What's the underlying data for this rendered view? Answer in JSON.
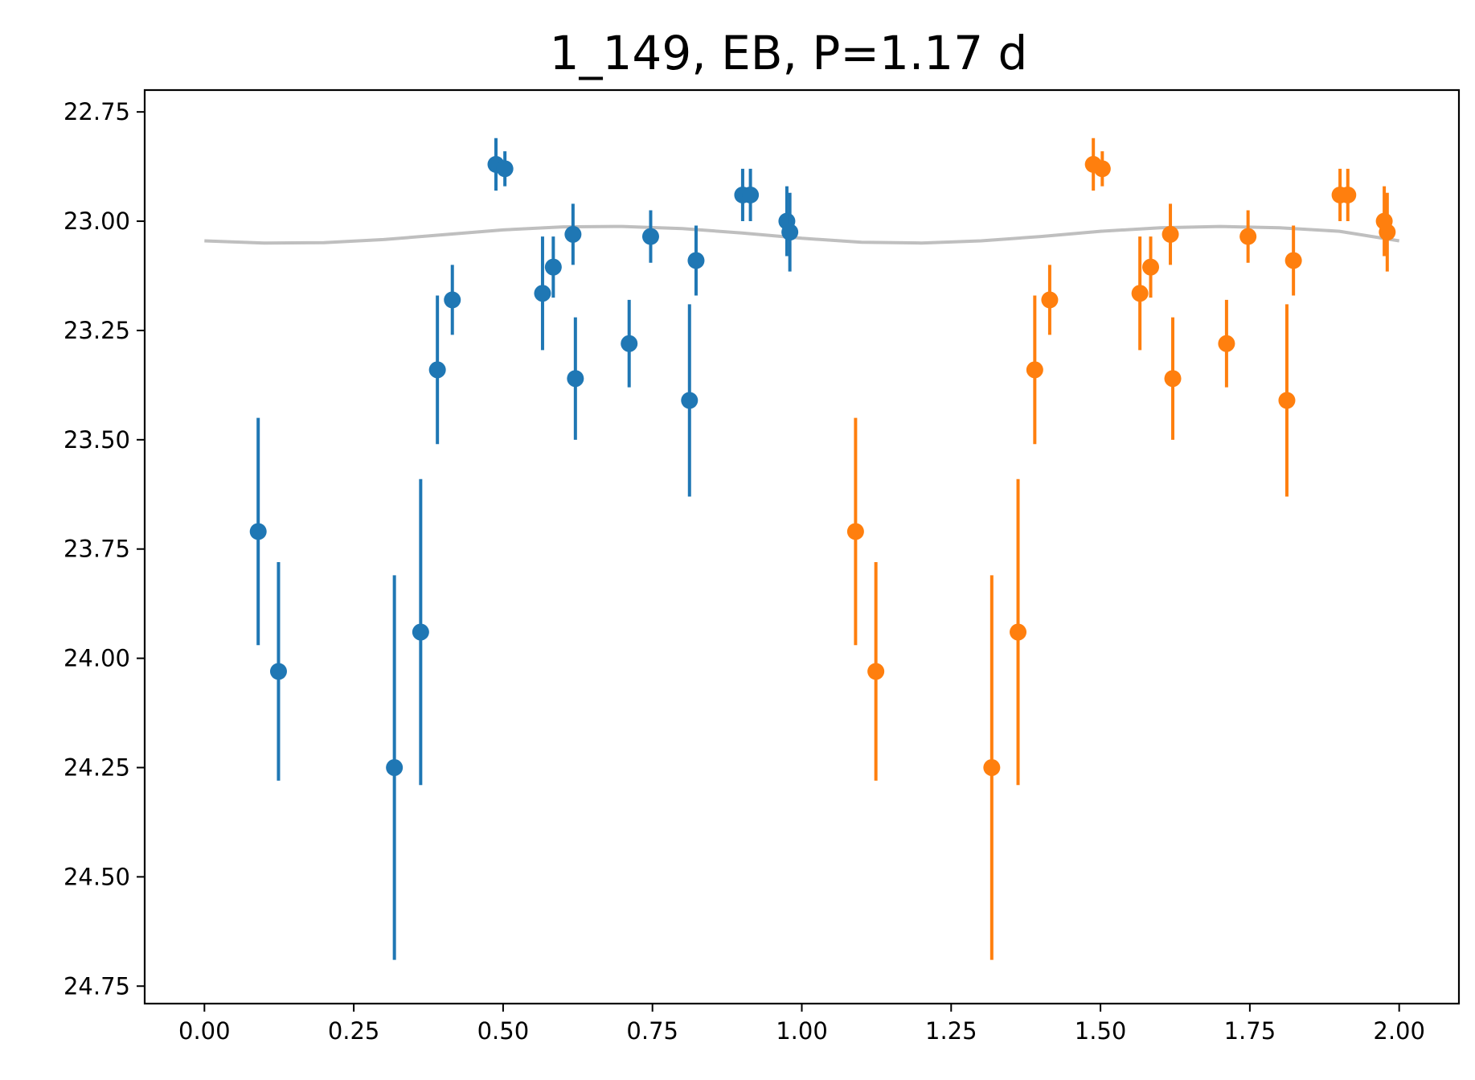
{
  "chart_data": {
    "type": "scatter",
    "title": "1_149, EB, P=1.17 d",
    "xlabel": "",
    "ylabel": "",
    "xlim": [
      -0.1,
      2.1
    ],
    "ylim": [
      24.79,
      22.7
    ],
    "y_inverted": true,
    "grid": false,
    "x_ticks": [
      "0.00",
      "0.25",
      "0.50",
      "0.75",
      "1.00",
      "1.25",
      "1.50",
      "1.75",
      "2.00"
    ],
    "y_ticks": [
      "22.75",
      "23.00",
      "23.25",
      "23.50",
      "23.75",
      "24.00",
      "24.25",
      "24.50",
      "24.75"
    ],
    "colors": {
      "phase0": "#1f77b4",
      "phase1": "#ff7f0e",
      "model": "#bfbfbf"
    },
    "model_curve": {
      "x": [
        0.0,
        0.1,
        0.2,
        0.3,
        0.4,
        0.5,
        0.6,
        0.7,
        0.8,
        0.9,
        1.0,
        1.1,
        1.2,
        1.3,
        1.4,
        1.5,
        1.6,
        1.7,
        1.8,
        1.9,
        2.0
      ],
      "y": [
        23.045,
        23.05,
        23.049,
        23.042,
        23.031,
        23.02,
        23.013,
        23.012,
        23.017,
        23.027,
        23.039,
        23.048,
        23.05,
        23.045,
        23.035,
        23.023,
        23.015,
        23.012,
        23.015,
        23.023,
        23.045
      ]
    },
    "series": [
      {
        "points": [
          {
            "x": 0.09,
            "y": 23.71,
            "err": 0.26
          },
          {
            "x": 0.124,
            "y": 24.03,
            "err": 0.25
          },
          {
            "x": 0.318,
            "y": 24.25,
            "err": 0.44
          },
          {
            "x": 0.362,
            "y": 23.94,
            "err": 0.35
          },
          {
            "x": 0.39,
            "y": 23.34,
            "err": 0.17
          },
          {
            "x": 0.415,
            "y": 23.18,
            "err": 0.08
          },
          {
            "x": 0.488,
            "y": 22.87,
            "err": 0.06
          },
          {
            "x": 0.503,
            "y": 22.88,
            "err": 0.04
          },
          {
            "x": 0.566,
            "y": 23.165,
            "err": 0.13
          },
          {
            "x": 0.584,
            "y": 23.105,
            "err": 0.07
          },
          {
            "x": 0.617,
            "y": 23.03,
            "err": 0.07
          },
          {
            "x": 0.621,
            "y": 23.36,
            "err": 0.14
          },
          {
            "x": 0.711,
            "y": 23.28,
            "err": 0.1
          },
          {
            "x": 0.747,
            "y": 23.035,
            "err": 0.06
          },
          {
            "x": 0.812,
            "y": 23.41,
            "err": 0.22
          },
          {
            "x": 0.823,
            "y": 23.09,
            "err": 0.08
          },
          {
            "x": 0.901,
            "y": 22.94,
            "err": 0.06
          },
          {
            "x": 0.914,
            "y": 22.94,
            "err": 0.06
          },
          {
            "x": 0.975,
            "y": 23.0,
            "err": 0.08
          },
          {
            "x": 0.98,
            "y": 23.025,
            "err": 0.09
          }
        ]
      },
      {
        "points": [
          {
            "x": 1.09,
            "y": 23.71,
            "err": 0.26
          },
          {
            "x": 1.124,
            "y": 24.03,
            "err": 0.25
          },
          {
            "x": 1.318,
            "y": 24.25,
            "err": 0.44
          },
          {
            "x": 1.362,
            "y": 23.94,
            "err": 0.35
          },
          {
            "x": 1.39,
            "y": 23.34,
            "err": 0.17
          },
          {
            "x": 1.415,
            "y": 23.18,
            "err": 0.08
          },
          {
            "x": 1.488,
            "y": 22.87,
            "err": 0.06
          },
          {
            "x": 1.503,
            "y": 22.88,
            "err": 0.04
          },
          {
            "x": 1.566,
            "y": 23.165,
            "err": 0.13
          },
          {
            "x": 1.584,
            "y": 23.105,
            "err": 0.07
          },
          {
            "x": 1.617,
            "y": 23.03,
            "err": 0.07
          },
          {
            "x": 1.621,
            "y": 23.36,
            "err": 0.14
          },
          {
            "x": 1.711,
            "y": 23.28,
            "err": 0.1
          },
          {
            "x": 1.747,
            "y": 23.035,
            "err": 0.06
          },
          {
            "x": 1.812,
            "y": 23.41,
            "err": 0.22
          },
          {
            "x": 1.823,
            "y": 23.09,
            "err": 0.08
          },
          {
            "x": 1.901,
            "y": 22.94,
            "err": 0.06
          },
          {
            "x": 1.914,
            "y": 22.94,
            "err": 0.06
          },
          {
            "x": 1.975,
            "y": 23.0,
            "err": 0.08
          },
          {
            "x": 1.98,
            "y": 23.025,
            "err": 0.09
          }
        ]
      }
    ]
  }
}
